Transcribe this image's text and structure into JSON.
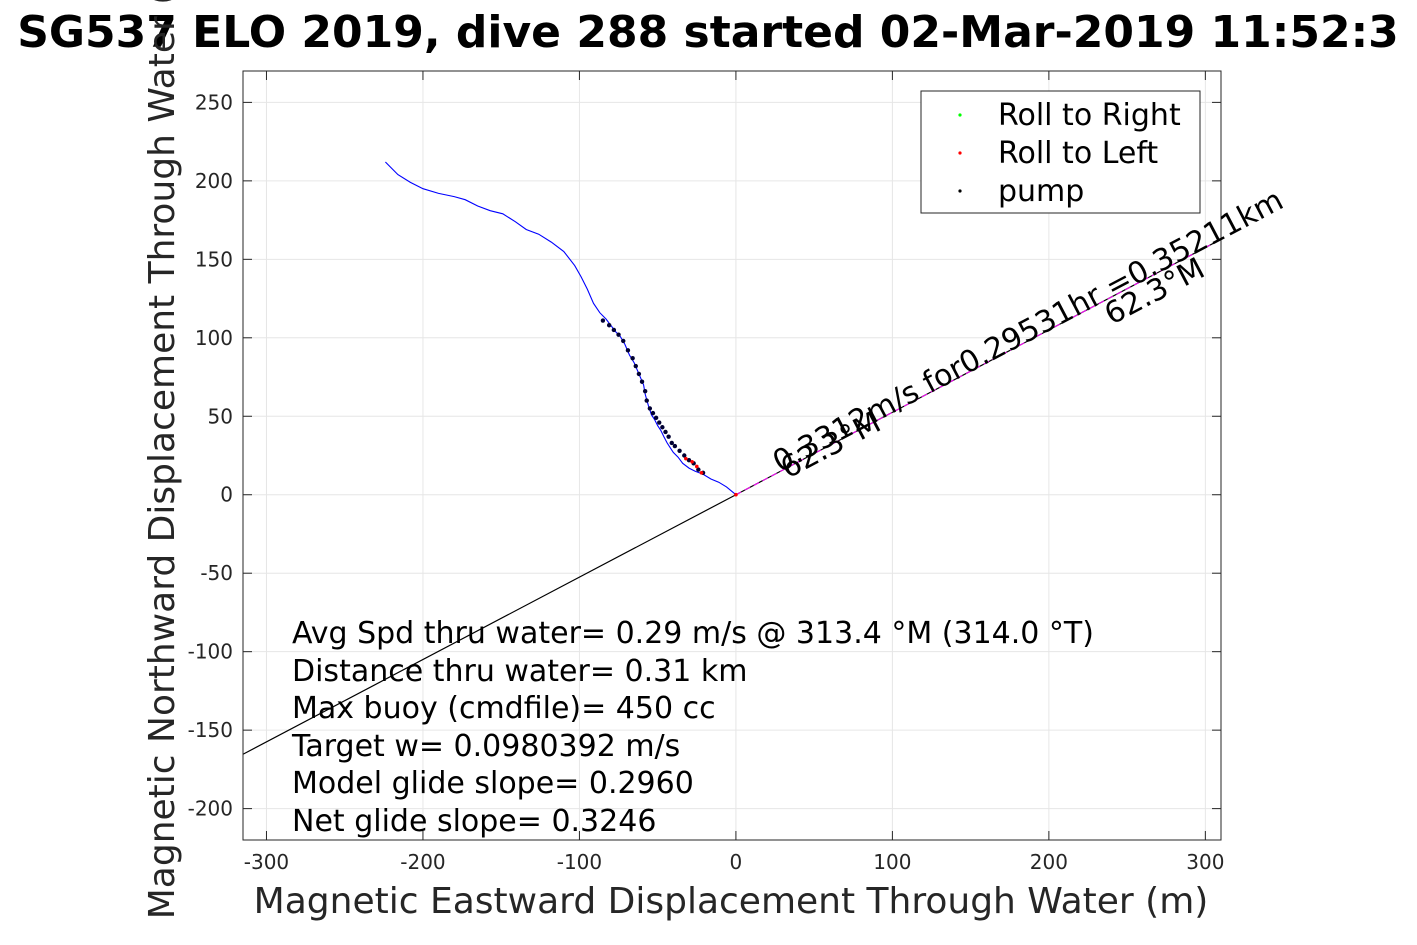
{
  "chart_data": {
    "type": "line",
    "title": "SG537 ELO 2019, dive 288 started 02-Mar-2019 11:52:3",
    "xlabel": "Magnetic Eastward Displacement Through Water (m)",
    "ylabel": "Magnetic Northward Displacement Through Water (",
    "xlim": [
      -315,
      310
    ],
    "ylim": [
      -220,
      270
    ],
    "x_ticks": [
      -300,
      -200,
      -100,
      0,
      100,
      200,
      300
    ],
    "y_ticks": [
      -200,
      -150,
      -100,
      -50,
      0,
      50,
      100,
      150,
      200,
      250
    ],
    "grid": true,
    "legend_position": "top-right",
    "legend": [
      {
        "label": "Roll to Right",
        "color": "#00ff00"
      },
      {
        "label": "Roll to Left",
        "color": "#ff0000"
      },
      {
        "label": "pump",
        "color": "#000000"
      }
    ],
    "track": {
      "color": "#0000ff",
      "x": [
        -224,
        -216,
        -208,
        -200,
        -190,
        -180,
        -173,
        -165,
        -157,
        -149,
        -141,
        -134,
        -126,
        -118,
        -110,
        -103,
        -99,
        -95,
        -91,
        -87,
        -83,
        -80,
        -77,
        -74,
        -71,
        -68,
        -65,
        -62,
        -59,
        -58,
        -56,
        -54,
        -52,
        -50,
        -48,
        -46,
        -44,
        -42,
        -40,
        -37,
        -34,
        -30,
        -26,
        -21,
        -16,
        -11,
        -6,
        0
      ],
      "y": [
        212,
        204,
        199,
        195,
        192,
        190,
        188,
        184,
        181,
        179,
        174,
        169,
        166,
        161,
        155,
        146,
        139,
        131,
        122,
        116,
        112,
        108,
        104,
        101,
        96,
        89,
        84,
        77,
        70,
        64,
        57,
        51,
        48,
        44,
        41,
        37,
        33,
        30,
        27,
        24,
        20,
        17,
        15,
        13,
        10,
        8,
        5,
        0
      ]
    },
    "pump_points": {
      "x": [
        -85,
        -81,
        -78,
        -75,
        -72,
        -69,
        -66,
        -64,
        -62,
        -60,
        -58,
        -57,
        -55,
        -53,
        -51,
        -49,
        -47,
        -45,
        -43,
        -41,
        -39,
        -36,
        -33,
        -30,
        -27,
        -24,
        -21
      ],
      "y": [
        111,
        108,
        105,
        102,
        98,
        92,
        87,
        82,
        77,
        72,
        66,
        60,
        55,
        52,
        49,
        46,
        43,
        40,
        37,
        33,
        31,
        28,
        25,
        22,
        20,
        16,
        14
      ]
    },
    "roll_left_points": {
      "x": [
        -32,
        -28,
        -25,
        -22,
        0
      ],
      "y": [
        23,
        21,
        18,
        14,
        0
      ]
    },
    "heading_line": {
      "heading_deg": 62.3,
      "extent": [
        -315,
        310
      ],
      "back_color": "#000000",
      "forward_color": "#ff00ff"
    },
    "annotations": [
      {
        "text": "62.3°M",
        "x": 33,
        "y": 10
      },
      {
        "text": "0.3312m/s for0.29531hr =0.35211km",
        "x": 28,
        "y": 14
      },
      {
        "text": "62.3°M",
        "x": 240,
        "y": 108
      }
    ],
    "info_lines": [
      "Avg Spd thru water=  0.29 m/s @ 313.4 °M (314.0 °T)",
      "Distance thru water=  0.31 km",
      "Max buoy (cmdfile)= 450 cc",
      "Target w= 0.0980392 m/s",
      "Model glide slope= 0.2960",
      "Net glide slope= 0.3246"
    ]
  }
}
